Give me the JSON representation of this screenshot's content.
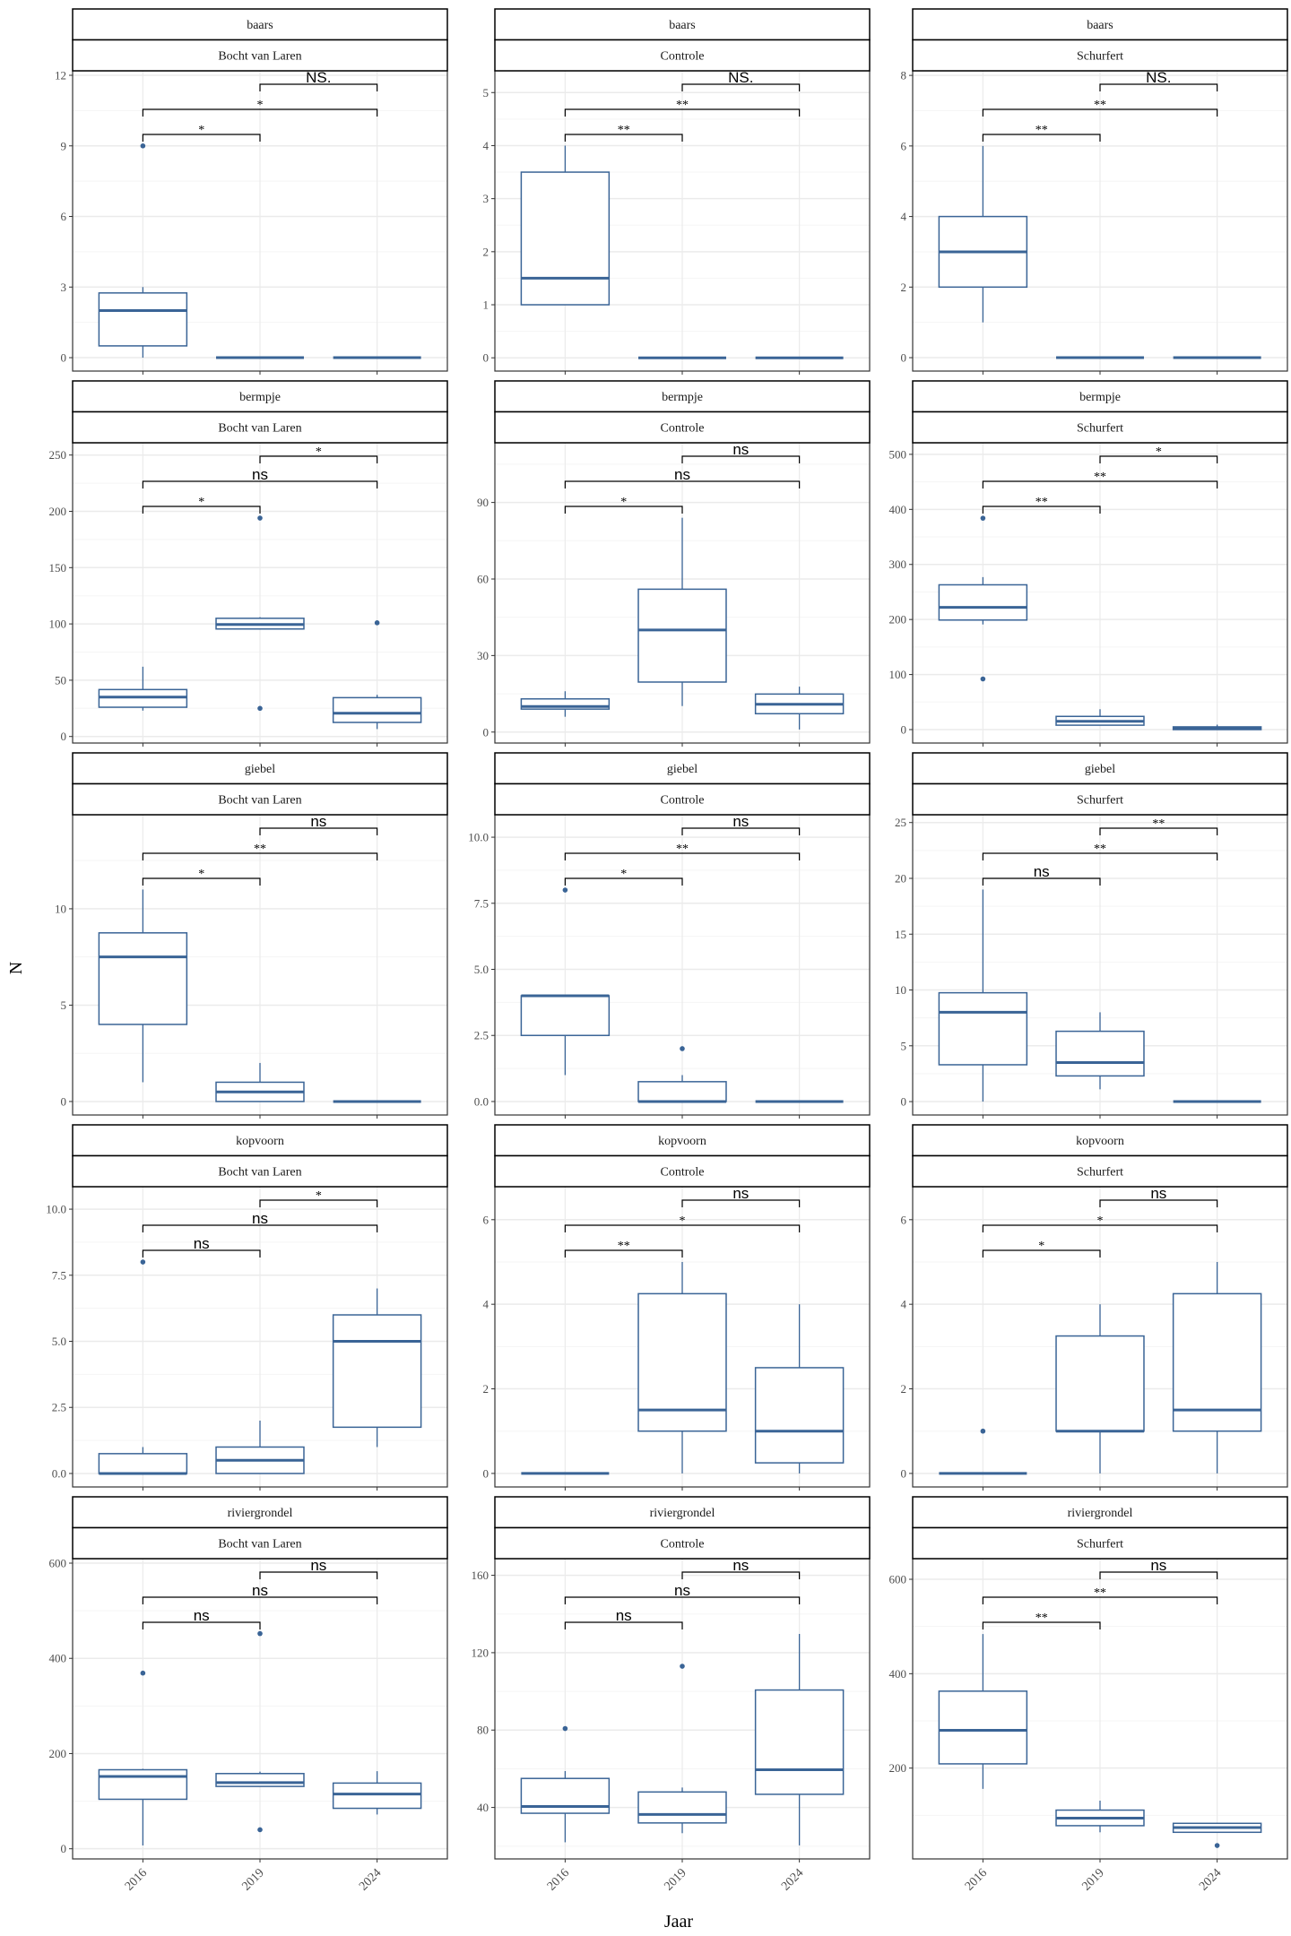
{
  "chart_data": {
    "type": "boxplot",
    "xlabel": "Jaar",
    "ylabel": "N",
    "categories": [
      "2016",
      "2019",
      "2024"
    ],
    "grid": true,
    "colors": {
      "box": "#3A6496",
      "grid_major": "#EBEBEB",
      "grid_minor": "#F5F5F5",
      "text": "#4D4D4D"
    },
    "panels": [
      {
        "species": "baars",
        "site": "Bocht van Laren",
        "ylim": [
          -0.57,
          12.19
        ],
        "yticks": [
          0,
          3,
          6,
          9,
          12
        ],
        "ytick_labels": [
          "0",
          "3",
          "6",
          "9",
          "12"
        ],
        "boxes": [
          {
            "lower": 0,
            "q1": 0.5,
            "median": 2,
            "q3": 2.75,
            "upper": 3,
            "outliers": [
              9
            ]
          },
          {
            "lower": 0,
            "q1": 0,
            "median": 0,
            "q3": 0,
            "upper": 0,
            "outliers": []
          },
          {
            "lower": 0,
            "q1": 0,
            "median": 0,
            "q3": 0,
            "upper": 0,
            "outliers": []
          }
        ],
        "significance": [
          "*",
          "*",
          "NS."
        ]
      },
      {
        "species": "baars",
        "site": "Controle",
        "ylim": [
          -0.25,
          5.41
        ],
        "yticks": [
          0,
          1,
          2,
          3,
          4,
          5
        ],
        "ytick_labels": [
          "0",
          "1",
          "2",
          "3",
          "4",
          "5"
        ],
        "boxes": [
          {
            "lower": 1,
            "q1": 1,
            "median": 1.5,
            "q3": 3.5,
            "upper": 4,
            "outliers": []
          },
          {
            "lower": 0,
            "q1": 0,
            "median": 0,
            "q3": 0,
            "upper": 0,
            "outliers": []
          },
          {
            "lower": 0,
            "q1": 0,
            "median": 0,
            "q3": 0,
            "upper": 0,
            "outliers": []
          }
        ],
        "significance": [
          "**",
          "**",
          "NS."
        ]
      },
      {
        "species": "baars",
        "site": "Schurfert",
        "ylim": [
          -0.38,
          8.13
        ],
        "yticks": [
          0,
          2,
          4,
          6,
          8
        ],
        "ytick_labels": [
          "0",
          "2",
          "4",
          "6",
          "8"
        ],
        "boxes": [
          {
            "lower": 1,
            "q1": 2,
            "median": 3,
            "q3": 4,
            "upper": 6,
            "outliers": []
          },
          {
            "lower": 0,
            "q1": 0,
            "median": 0,
            "q3": 0,
            "upper": 0,
            "outliers": []
          },
          {
            "lower": 0,
            "q1": 0,
            "median": 0,
            "q3": 0,
            "upper": 0,
            "outliers": []
          }
        ],
        "significance": [
          "**",
          "**",
          "NS."
        ]
      },
      {
        "species": "bermpje",
        "site": "Bocht van Laren",
        "ylim": [
          -5.8,
          260.9
        ],
        "yticks": [
          0,
          50,
          100,
          150,
          200,
          250
        ],
        "ytick_labels": [
          "0",
          "50",
          "100",
          "150",
          "200",
          "250"
        ],
        "boxes": [
          {
            "lower": 23,
            "q1": 26,
            "median": 35,
            "q3": 41.7,
            "upper": 62,
            "outliers": []
          },
          {
            "lower": 95.5,
            "q1": 95.5,
            "median": 99.5,
            "q3": 105,
            "upper": 106,
            "outliers": [
              194,
              25
            ]
          },
          {
            "lower": 6.6,
            "q1": 12.5,
            "median": 20.7,
            "q3": 34.5,
            "upper": 37,
            "outliers": [
              101
            ]
          }
        ],
        "significance": [
          "*",
          "ns",
          "*"
        ]
      },
      {
        "species": "bermpje",
        "site": "Controle",
        "ylim": [
          -4.3,
          113.4
        ],
        "yticks": [
          0,
          30,
          60,
          90
        ],
        "ytick_labels": [
          "0",
          "30",
          "60",
          "90"
        ],
        "boxes": [
          {
            "lower": 6,
            "q1": 9,
            "median": 10,
            "q3": 13,
            "upper": 16,
            "outliers": []
          },
          {
            "lower": 10.2,
            "q1": 19.6,
            "median": 40,
            "q3": 56,
            "upper": 84,
            "outliers": []
          },
          {
            "lower": 1,
            "q1": 7.2,
            "median": 10.9,
            "q3": 14.9,
            "upper": 17.8,
            "outliers": []
          }
        ],
        "significance": [
          "*",
          "ns",
          "ns"
        ]
      },
      {
        "species": "bermpje",
        "site": "Schurfert",
        "ylim": [
          -24.4,
          521
        ],
        "yticks": [
          0,
          100,
          200,
          300,
          400,
          500
        ],
        "ytick_labels": [
          "0",
          "100",
          "200",
          "300",
          "400",
          "500"
        ],
        "boxes": [
          {
            "lower": 191,
            "q1": 199,
            "median": 222,
            "q3": 263,
            "upper": 277,
            "outliers": [
              384,
              92
            ]
          },
          {
            "lower": 8,
            "q1": 8,
            "median": 15,
            "q3": 24,
            "upper": 37,
            "outliers": []
          },
          {
            "lower": 0,
            "q1": 0,
            "median": 2,
            "q3": 5,
            "upper": 9,
            "outliers": []
          }
        ],
        "significance": [
          "**",
          "**",
          "*"
        ]
      },
      {
        "species": "giebel",
        "site": "Bocht van Laren",
        "ylim": [
          -0.7,
          14.88
        ],
        "yticks": [
          0,
          5,
          10
        ],
        "ytick_labels": [
          "0",
          "5",
          "10"
        ],
        "boxes": [
          {
            "lower": 1,
            "q1": 4,
            "median": 7.5,
            "q3": 8.75,
            "upper": 11,
            "outliers": []
          },
          {
            "lower": 0,
            "q1": 0,
            "median": 0.5,
            "q3": 1,
            "upper": 2,
            "outliers": []
          },
          {
            "lower": 0,
            "q1": 0,
            "median": 0,
            "q3": 0,
            "upper": 0,
            "outliers": []
          }
        ],
        "significance": [
          "*",
          "**",
          "ns"
        ]
      },
      {
        "species": "giebel",
        "site": "Controle",
        "ylim": [
          -0.51,
          10.85
        ],
        "yticks": [
          0,
          2.5,
          5,
          7.5,
          10
        ],
        "ytick_labels": [
          "0.0",
          "2.5",
          "5.0",
          "7.5",
          "10.0"
        ],
        "boxes": [
          {
            "lower": 1,
            "q1": 2.5,
            "median": 4,
            "q3": 4,
            "upper": 4,
            "outliers": [
              8
            ]
          },
          {
            "lower": 0,
            "q1": 0,
            "median": 0,
            "q3": 0.75,
            "upper": 1,
            "outliers": [
              2
            ]
          },
          {
            "lower": 0,
            "q1": 0,
            "median": 0,
            "q3": 0,
            "upper": 0,
            "outliers": []
          }
        ],
        "significance": [
          "*",
          "**",
          "ns"
        ]
      },
      {
        "species": "giebel",
        "site": "Schurfert",
        "ylim": [
          -1.2,
          25.7
        ],
        "yticks": [
          0,
          5,
          10,
          15,
          20,
          25
        ],
        "ytick_labels": [
          "0",
          "5",
          "10",
          "15",
          "20",
          "25"
        ],
        "boxes": [
          {
            "lower": 0,
            "q1": 3.3,
            "median": 8,
            "q3": 9.75,
            "upper": 19,
            "outliers": []
          },
          {
            "lower": 1.1,
            "q1": 2.3,
            "median": 3.5,
            "q3": 6.3,
            "upper": 8,
            "outliers": []
          },
          {
            "lower": 0,
            "q1": 0,
            "median": 0,
            "q3": 0,
            "upper": 0,
            "outliers": []
          }
        ],
        "significance": [
          "ns",
          "**",
          "**"
        ]
      },
      {
        "species": "kopvoorn",
        "site": "Bocht van Laren",
        "ylim": [
          -0.51,
          10.85
        ],
        "yticks": [
          0,
          2.5,
          5,
          7.5,
          10
        ],
        "ytick_labels": [
          "0.0",
          "2.5",
          "5.0",
          "7.5",
          "10.0"
        ],
        "boxes": [
          {
            "lower": 0,
            "q1": 0,
            "median": 0,
            "q3": 0.75,
            "upper": 1,
            "outliers": [
              8
            ]
          },
          {
            "lower": 0,
            "q1": 0,
            "median": 0.5,
            "q3": 1,
            "upper": 2,
            "outliers": []
          },
          {
            "lower": 1,
            "q1": 1.75,
            "median": 5,
            "q3": 6,
            "upper": 7,
            "outliers": []
          }
        ],
        "significance": [
          "ns",
          "ns",
          "*"
        ]
      },
      {
        "species": "kopvoorn",
        "site": "Controle",
        "ylim": [
          -0.32,
          6.78
        ],
        "yticks": [
          0,
          2,
          4,
          6
        ],
        "ytick_labels": [
          "0",
          "2",
          "4",
          "6"
        ],
        "boxes": [
          {
            "lower": 0,
            "q1": 0,
            "median": 0,
            "q3": 0,
            "upper": 0,
            "outliers": []
          },
          {
            "lower": 0,
            "q1": 1,
            "median": 1.5,
            "q3": 4.25,
            "upper": 5,
            "outliers": []
          },
          {
            "lower": 0,
            "q1": 0.25,
            "median": 1,
            "q3": 2.5,
            "upper": 4,
            "outliers": []
          }
        ],
        "significance": [
          "**",
          "*",
          "ns"
        ]
      },
      {
        "species": "kopvoorn",
        "site": "Schurfert",
        "ylim": [
          -0.32,
          6.78
        ],
        "yticks": [
          0,
          2,
          4,
          6
        ],
        "ytick_labels": [
          "0",
          "2",
          "4",
          "6"
        ],
        "boxes": [
          {
            "lower": 0,
            "q1": 0,
            "median": 0,
            "q3": 0,
            "upper": 0,
            "outliers": [
              1
            ]
          },
          {
            "lower": 0,
            "q1": 1,
            "median": 1,
            "q3": 3.25,
            "upper": 4,
            "outliers": []
          },
          {
            "lower": 0,
            "q1": 1,
            "median": 1.5,
            "q3": 4.25,
            "upper": 5,
            "outliers": []
          }
        ],
        "significance": [
          "*",
          "*",
          "ns"
        ]
      },
      {
        "species": "riviergrondel",
        "site": "Bocht van Laren",
        "ylim": [
          -21.3,
          609.4
        ],
        "yticks": [
          0,
          200,
          400,
          600
        ],
        "ytick_labels": [
          "0",
          "200",
          "400",
          "600"
        ],
        "boxes": [
          {
            "lower": 7,
            "q1": 104,
            "median": 152,
            "q3": 166,
            "upper": 168,
            "outliers": [
              369
            ]
          },
          {
            "lower": 131,
            "q1": 131,
            "median": 139,
            "q3": 158,
            "upper": 162,
            "outliers": [
              452,
              40
            ]
          },
          {
            "lower": 72,
            "q1": 85,
            "median": 115,
            "q3": 138,
            "upper": 163,
            "outliers": []
          }
        ],
        "significance": [
          "ns",
          "ns",
          "ns"
        ]
      },
      {
        "species": "riviergrondel",
        "site": "Controle",
        "ylim": [
          13.4,
          168.6
        ],
        "yticks": [
          40,
          80,
          120,
          160
        ],
        "ytick_labels": [
          "40",
          "80",
          "120",
          "160"
        ],
        "boxes": [
          {
            "lower": 22,
            "q1": 37,
            "median": 40.5,
            "q3": 55,
            "upper": 58.8,
            "outliers": [
              80.8
            ]
          },
          {
            "lower": 26.7,
            "q1": 32,
            "median": 36.4,
            "q3": 48,
            "upper": 50.3,
            "outliers": [
              113
            ]
          },
          {
            "lower": 20.4,
            "q1": 46.8,
            "median": 59.5,
            "q3": 100.7,
            "upper": 129.7,
            "outliers": []
          }
        ],
        "significance": [
          "ns",
          "ns",
          "ns"
        ]
      },
      {
        "species": "riviergrondel",
        "site": "Schurfert",
        "ylim": [
          7.6,
          643.7
        ],
        "yticks": [
          200,
          400,
          600
        ],
        "ytick_labels": [
          "200",
          "400",
          "600"
        ],
        "boxes": [
          {
            "lower": 156,
            "q1": 209,
            "median": 280,
            "q3": 363,
            "upper": 484,
            "outliers": []
          },
          {
            "lower": 64,
            "q1": 78,
            "median": 94,
            "q3": 111,
            "upper": 131,
            "outliers": []
          },
          {
            "lower": 64,
            "q1": 64,
            "median": 74,
            "q3": 83,
            "upper": 84,
            "outliers": [
              36
            ]
          }
        ],
        "significance": [
          "**",
          "**",
          "ns"
        ]
      }
    ]
  }
}
